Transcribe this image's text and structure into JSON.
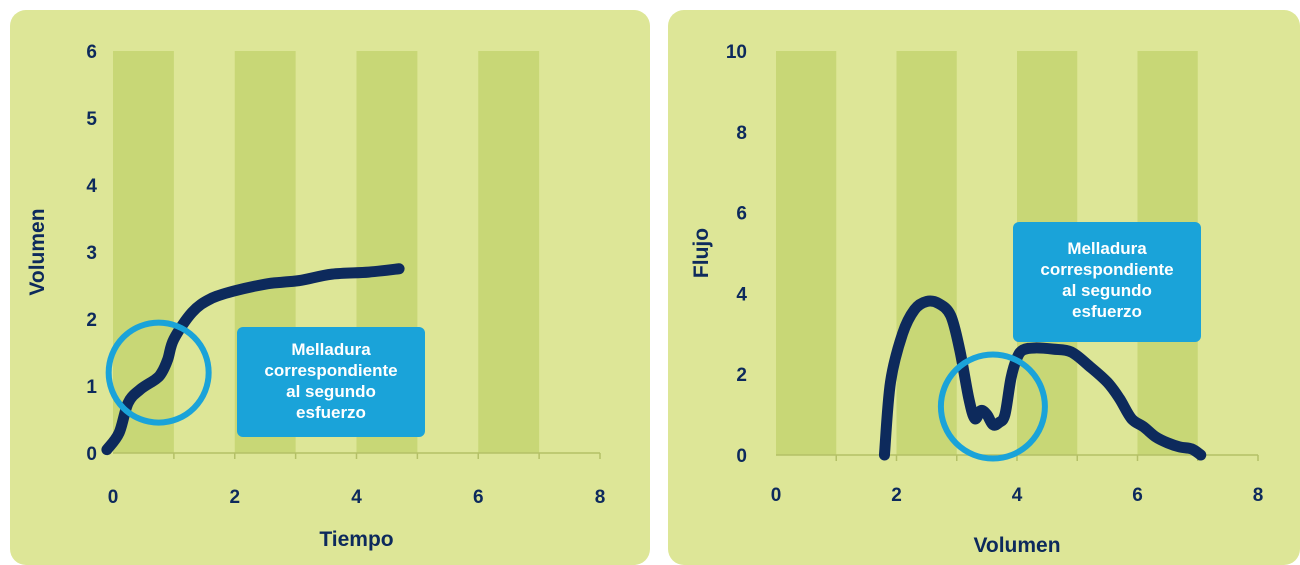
{
  "colors": {
    "panel_bg": "#dde697",
    "band": "#c8d776",
    "axis": "#b4c067",
    "curve": "#0d2a5c",
    "circle": "#1aa3d9",
    "callout_bg": "#1aa3d9",
    "callout_text": "#ffffff",
    "label_text": "#0d2a5c"
  },
  "chart_data": [
    {
      "type": "line",
      "xlabel": "Tiempo",
      "ylabel": "Volumen",
      "xlim": [
        0,
        8
      ],
      "ylim": [
        0,
        6
      ],
      "x_ticks": [
        "0",
        "2",
        "4",
        "6",
        "8"
      ],
      "y_ticks": [
        "0",
        "1",
        "2",
        "3",
        "4",
        "5",
        "6"
      ],
      "bands": [
        [
          0,
          1
        ],
        [
          2,
          3
        ],
        [
          4,
          5
        ],
        [
          6,
          7
        ]
      ],
      "series": [
        {
          "x": [
            -0.1,
            0.1,
            0.25,
            0.45,
            0.7,
            0.8,
            0.9,
            1.0,
            1.3,
            1.6,
            2.0,
            2.5,
            2.8,
            3.1,
            3.6,
            4.2,
            4.7
          ],
          "y": [
            0.05,
            0.3,
            0.75,
            0.95,
            1.1,
            1.2,
            1.4,
            1.7,
            2.1,
            2.3,
            2.42,
            2.52,
            2.55,
            2.58,
            2.67,
            2.7,
            2.75
          ]
        }
      ],
      "highlight_circle": {
        "x": 0.75,
        "y": 1.2
      },
      "callout": {
        "lines": [
          "Melladura",
          "correspondiente",
          "al segundo",
          "esfuerzo"
        ]
      }
    },
    {
      "type": "line",
      "xlabel": "Volumen",
      "ylabel": "Flujo",
      "xlim": [
        0,
        8
      ],
      "ylim": [
        0,
        10
      ],
      "x_ticks": [
        "0",
        "2",
        "4",
        "6",
        "8"
      ],
      "y_ticks": [
        "0",
        "2",
        "4",
        "6",
        "8",
        "10"
      ],
      "bands": [
        [
          0,
          1
        ],
        [
          2,
          3
        ],
        [
          4,
          5
        ],
        [
          6,
          7
        ]
      ],
      "series": [
        {
          "x": [
            1.8,
            1.9,
            2.1,
            2.3,
            2.5,
            2.7,
            2.9,
            3.05,
            3.2,
            3.3,
            3.4,
            3.5,
            3.6,
            3.7,
            3.8,
            3.9,
            4.0,
            4.1,
            4.3,
            4.6,
            4.9,
            5.2,
            5.5,
            5.7,
            5.9,
            6.1,
            6.3,
            6.5,
            6.7,
            6.9,
            7.05
          ],
          "y": [
            0.0,
            1.8,
            3.0,
            3.6,
            3.8,
            3.75,
            3.45,
            2.6,
            1.4,
            0.9,
            1.1,
            1.0,
            0.75,
            0.8,
            1.0,
            1.9,
            2.4,
            2.6,
            2.65,
            2.62,
            2.55,
            2.2,
            1.8,
            1.4,
            0.9,
            0.7,
            0.45,
            0.3,
            0.2,
            0.15,
            0.0
          ]
        }
      ],
      "highlight_circle": {
        "x": 3.6,
        "y": 1.2
      },
      "callout": {
        "lines": [
          "Melladura",
          "correspondiente",
          "al segundo",
          "esfuerzo"
        ]
      }
    }
  ]
}
